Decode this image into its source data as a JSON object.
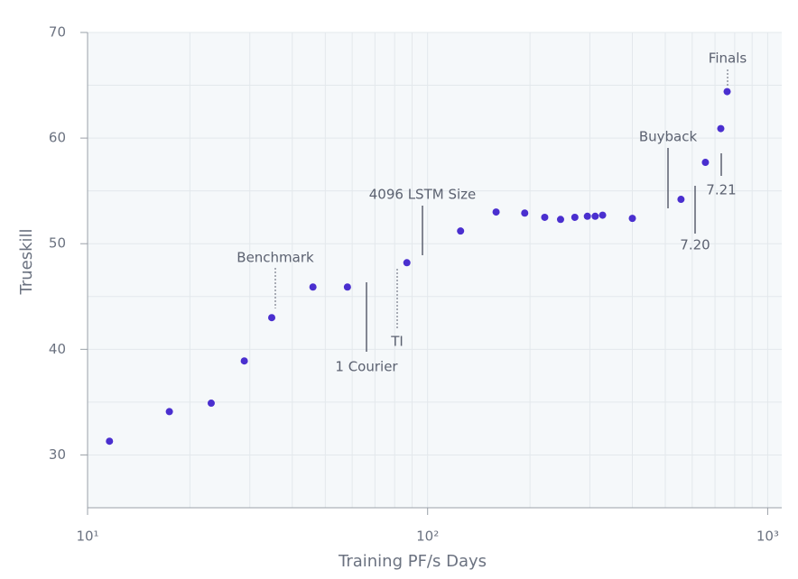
{
  "chart_data": {
    "type": "scatter",
    "x_label": "Training PF/s Days",
    "y_label": "Trueskill",
    "x_log": true,
    "xlim": [
      10,
      1100
    ],
    "ylim": [
      25,
      70
    ],
    "xticks": [
      {
        "value": 10,
        "label": "10¹"
      },
      {
        "value": 100,
        "label": "10²"
      },
      {
        "value": 1000,
        "label": "10³"
      }
    ],
    "xminorticks": [
      20,
      30,
      40,
      50,
      60,
      70,
      80,
      90,
      200,
      300,
      400,
      500,
      600,
      700,
      800,
      900
    ],
    "yticks": [
      30,
      40,
      50,
      60,
      70
    ],
    "yminorticks": [
      35,
      45,
      55,
      65
    ],
    "grid": true,
    "color": "#4a2fcf",
    "x": [
      11.6,
      17.4,
      23.1,
      28.9,
      34.8,
      46.0,
      58.1,
      86.9,
      125,
      159,
      193,
      221,
      246,
      271,
      295,
      311,
      327,
      400,
      556,
      656,
      728,
      760
    ],
    "values": [
      31.3,
      34.1,
      34.9,
      38.9,
      43.0,
      45.9,
      45.9,
      48.2,
      51.2,
      53.0,
      52.9,
      52.5,
      52.3,
      52.5,
      52.6,
      52.6,
      52.7,
      52.4,
      54.2,
      57.7,
      60.9,
      64.4
    ],
    "annotations": [
      "Benchmark",
      "1 Courier",
      "TI",
      "4096 LSTM Size",
      "Buyback",
      "7.20",
      "7.21",
      "Finals"
    ]
  }
}
